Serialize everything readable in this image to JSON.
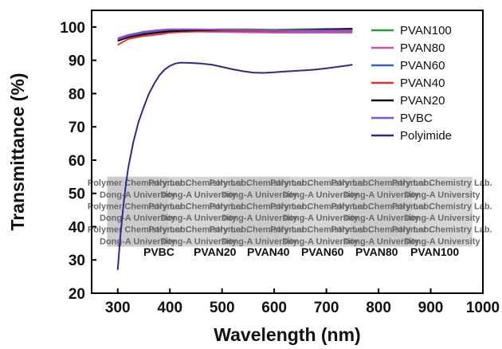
{
  "chart_data": {
    "type": "line",
    "xlabel": "Wavelength (nm)",
    "ylabel": "Transmittance (%)",
    "xlim": [
      250,
      1000
    ],
    "ylim": [
      20,
      105
    ],
    "xticks": [
      300,
      400,
      500,
      600,
      700,
      800,
      900,
      1000
    ],
    "yticks": [
      20,
      30,
      40,
      50,
      60,
      70,
      80,
      90,
      100
    ],
    "legend_position": "top-right",
    "grid": false,
    "series": [
      {
        "name": "PVAN100",
        "color": "#1f9e3a",
        "x": [
          300,
          320,
          350,
          380,
          400,
          450,
          500,
          550,
          600,
          650,
          700,
          750
        ],
        "y": [
          96.2,
          97.2,
          98.2,
          98.7,
          99.0,
          99.2,
          99.3,
          99.3,
          99.2,
          99.3,
          99.4,
          99.4
        ]
      },
      {
        "name": "PVAN80",
        "color": "#c451c4",
        "x": [
          300,
          320,
          350,
          380,
          400,
          450,
          500,
          550,
          600,
          650,
          700,
          750
        ],
        "y": [
          96.0,
          97.0,
          97.8,
          98.3,
          98.5,
          98.6,
          98.5,
          98.4,
          98.3,
          98.3,
          98.3,
          98.3
        ]
      },
      {
        "name": "PVAN60",
        "color": "#3b5fc9",
        "x": [
          300,
          320,
          350,
          380,
          400,
          450,
          500,
          550,
          600,
          650,
          700,
          750
        ],
        "y": [
          96.5,
          97.5,
          98.3,
          98.7,
          98.9,
          99.0,
          98.9,
          98.8,
          98.8,
          98.8,
          98.8,
          98.8
        ]
      },
      {
        "name": "PVAN40",
        "color": "#e8332b",
        "x": [
          300,
          320,
          350,
          380,
          400,
          450,
          500,
          550,
          600,
          650,
          700,
          750
        ],
        "y": [
          94.6,
          96.4,
          97.3,
          97.8,
          98.3,
          98.7,
          98.8,
          98.8,
          98.8,
          98.9,
          98.9,
          98.9
        ]
      },
      {
        "name": "PVAN20",
        "color": "#111111",
        "x": [
          300,
          320,
          350,
          380,
          400,
          450,
          500,
          550,
          600,
          650,
          700,
          750
        ],
        "y": [
          95.8,
          96.9,
          97.8,
          98.4,
          98.7,
          99.0,
          99.1,
          99.1,
          99.0,
          99.1,
          99.3,
          99.5
        ]
      },
      {
        "name": "PVBC",
        "color": "#8b4fd1",
        "x": [
          300,
          320,
          350,
          380,
          400,
          450,
          500,
          550,
          600,
          650,
          700,
          750
        ],
        "y": [
          96.6,
          97.6,
          98.6,
          99.1,
          99.3,
          99.3,
          99.2,
          99.1,
          99.0,
          99.0,
          99.0,
          99.0
        ]
      },
      {
        "name": "Polyimide",
        "color": "#2b2c8a",
        "x": [
          300,
          305,
          310,
          315,
          320,
          330,
          340,
          350,
          360,
          370,
          380,
          390,
          400,
          410,
          420,
          440,
          460,
          480,
          500,
          520,
          540,
          560,
          580,
          600,
          620,
          640,
          660,
          680,
          700,
          720,
          740,
          750
        ],
        "y": [
          27.0,
          37.0,
          45.0,
          52.0,
          57.5,
          65.5,
          71.5,
          76.0,
          80.0,
          83.0,
          85.5,
          87.2,
          88.3,
          89.0,
          89.3,
          89.2,
          89.0,
          88.7,
          88.0,
          87.3,
          86.7,
          86.3,
          86.2,
          86.4,
          86.6,
          86.8,
          87.0,
          87.2,
          87.6,
          88.0,
          88.4,
          88.7
        ]
      }
    ],
    "inset": {
      "lines": [
        "Polymer Chemistry Lab.",
        "Dong-A University",
        "Polymer Chemistry Lab.",
        "Dong-A University",
        "Polymer Chemistry Lab.",
        "Dong-A University"
      ],
      "labels": [
        "PVBC",
        "PVAN20",
        "PVAN40",
        "PVAN60",
        "PVAN80",
        "PVAN100"
      ]
    }
  }
}
